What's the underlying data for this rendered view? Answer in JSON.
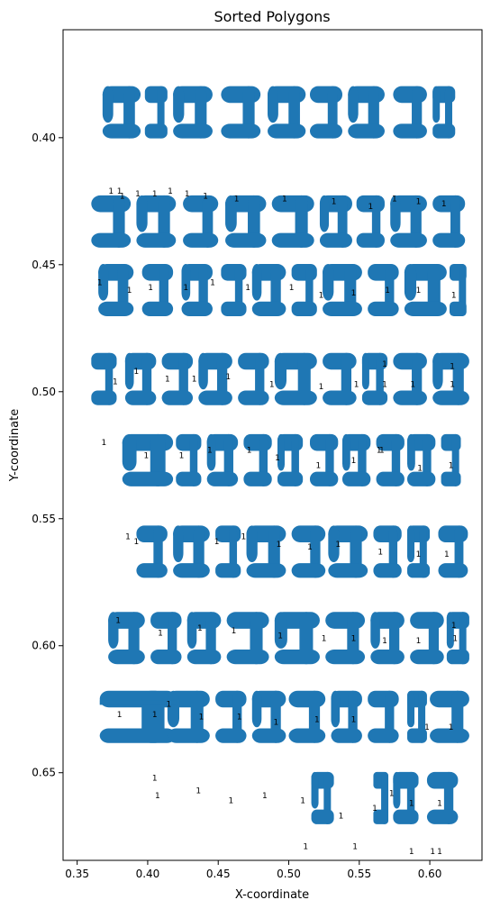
{
  "chart_data": {
    "type": "scatter",
    "title": "Sorted Polygons",
    "xlabel": "X-coordinate",
    "ylabel": "Y-coordinate",
    "xlim": [
      0.34,
      0.637
    ],
    "ylim": [
      0.6845,
      0.3575
    ],
    "y_inverted": true,
    "grid": false,
    "legend": "none",
    "color": "#1f77b4",
    "xticks": [
      0.35,
      0.4,
      0.45,
      0.5,
      0.55,
      0.6
    ],
    "xtick_labels": [
      "0.35",
      "0.40",
      "0.45",
      "0.50",
      "0.55",
      "0.60"
    ],
    "yticks": [
      0.4,
      0.45,
      0.5,
      0.55,
      0.6,
      0.65
    ],
    "ytick_labels": [
      "0.40",
      "0.45",
      "0.50",
      "0.55",
      "0.60",
      "0.65"
    ],
    "point_label_text": "1",
    "polygon_rows": [
      {
        "y": 0.39,
        "x_ranges": [
          [
            0.368,
            0.395
          ],
          [
            0.398,
            0.414
          ],
          [
            0.418,
            0.446
          ],
          [
            0.452,
            0.48
          ],
          [
            0.485,
            0.512
          ],
          [
            0.515,
            0.538
          ],
          [
            0.542,
            0.568
          ],
          [
            0.574,
            0.598
          ],
          [
            0.602,
            0.618
          ]
        ]
      },
      {
        "y": 0.433,
        "x_ranges": [
          [
            0.36,
            0.388
          ],
          [
            0.392,
            0.42
          ],
          [
            0.425,
            0.45
          ],
          [
            0.455,
            0.484
          ],
          [
            0.488,
            0.518
          ],
          [
            0.522,
            0.545
          ],
          [
            0.548,
            0.568
          ],
          [
            0.572,
            0.598
          ],
          [
            0.602,
            0.625
          ]
        ]
      },
      {
        "y": 0.46,
        "x_ranges": [
          [
            0.365,
            0.39
          ],
          [
            0.396,
            0.418
          ],
          [
            0.424,
            0.446
          ],
          [
            0.452,
            0.47
          ],
          [
            0.474,
            0.498
          ],
          [
            0.502,
            0.52
          ],
          [
            0.524,
            0.552
          ],
          [
            0.556,
            0.578
          ],
          [
            0.582,
            0.612
          ],
          [
            0.614,
            0.626
          ]
        ]
      },
      {
        "y": 0.495,
        "x_ranges": [
          [
            0.36,
            0.378
          ],
          [
            0.384,
            0.406
          ],
          [
            0.41,
            0.432
          ],
          [
            0.436,
            0.46
          ],
          [
            0.464,
            0.486
          ],
          [
            0.49,
            0.52
          ],
          [
            0.524,
            0.548
          ],
          [
            0.552,
            0.57
          ],
          [
            0.574,
            0.598
          ],
          [
            0.602,
            0.628
          ]
        ]
      },
      {
        "y": 0.527,
        "x_ranges": [
          [
            0.382,
            0.418
          ],
          [
            0.42,
            0.438
          ],
          [
            0.442,
            0.464
          ],
          [
            0.468,
            0.488
          ],
          [
            0.492,
            0.51
          ],
          [
            0.515,
            0.535
          ],
          [
            0.538,
            0.558
          ],
          [
            0.562,
            0.582
          ],
          [
            0.584,
            0.604
          ],
          [
            0.608,
            0.622
          ]
        ]
      },
      {
        "y": 0.563,
        "x_ranges": [
          [
            0.392,
            0.414
          ],
          [
            0.418,
            0.444
          ],
          [
            0.448,
            0.466
          ],
          [
            0.47,
            0.498
          ],
          [
            0.502,
            0.526
          ],
          [
            0.528,
            0.556
          ],
          [
            0.56,
            0.58
          ],
          [
            0.584,
            0.6
          ],
          [
            0.606,
            0.627
          ]
        ]
      },
      {
        "y": 0.597,
        "x_ranges": [
          [
            0.372,
            0.398
          ],
          [
            0.402,
            0.424
          ],
          [
            0.428,
            0.452
          ],
          [
            0.456,
            0.486
          ],
          [
            0.49,
            0.522
          ],
          [
            0.526,
            0.554
          ],
          [
            0.558,
            0.582
          ],
          [
            0.586,
            0.61
          ],
          [
            0.612,
            0.628
          ]
        ]
      },
      {
        "y": 0.628,
        "x_ranges": [
          [
            0.366,
            0.42
          ],
          [
            0.414,
            0.444
          ],
          [
            0.448,
            0.47
          ],
          [
            0.474,
            0.498
          ],
          [
            0.5,
            0.526
          ],
          [
            0.53,
            0.552
          ],
          [
            0.556,
            0.578
          ],
          [
            0.584,
            0.598
          ],
          [
            0.6,
            0.628
          ]
        ]
      },
      {
        "y": 0.66,
        "x_ranges": [
          [
            0.516,
            0.532
          ],
          [
            0.56,
            0.57
          ],
          [
            0.574,
            0.592
          ],
          [
            0.598,
            0.62
          ]
        ]
      }
    ],
    "point_labels": [
      [
        0.374,
        0.421
      ],
      [
        0.38,
        0.421
      ],
      [
        0.382,
        0.423
      ],
      [
        0.393,
        0.422
      ],
      [
        0.405,
        0.422
      ],
      [
        0.416,
        0.421
      ],
      [
        0.428,
        0.422
      ],
      [
        0.441,
        0.423
      ],
      [
        0.463,
        0.424
      ],
      [
        0.497,
        0.424
      ],
      [
        0.532,
        0.425
      ],
      [
        0.558,
        0.427
      ],
      [
        0.575,
        0.424
      ],
      [
        0.592,
        0.425
      ],
      [
        0.61,
        0.426
      ],
      [
        0.366,
        0.457
      ],
      [
        0.387,
        0.46
      ],
      [
        0.402,
        0.459
      ],
      [
        0.427,
        0.459
      ],
      [
        0.446,
        0.457
      ],
      [
        0.471,
        0.459
      ],
      [
        0.502,
        0.459
      ],
      [
        0.523,
        0.462
      ],
      [
        0.546,
        0.461
      ],
      [
        0.57,
        0.46
      ],
      [
        0.592,
        0.46
      ],
      [
        0.617,
        0.462
      ],
      [
        0.377,
        0.496
      ],
      [
        0.392,
        0.492
      ],
      [
        0.414,
        0.495
      ],
      [
        0.433,
        0.495
      ],
      [
        0.457,
        0.494
      ],
      [
        0.488,
        0.497
      ],
      [
        0.523,
        0.498
      ],
      [
        0.548,
        0.497
      ],
      [
        0.568,
        0.489
      ],
      [
        0.568,
        0.497
      ],
      [
        0.588,
        0.497
      ],
      [
        0.616,
        0.49
      ],
      [
        0.616,
        0.497
      ],
      [
        0.369,
        0.52
      ],
      [
        0.399,
        0.525
      ],
      [
        0.424,
        0.525
      ],
      [
        0.444,
        0.523
      ],
      [
        0.472,
        0.523
      ],
      [
        0.492,
        0.526
      ],
      [
        0.521,
        0.529
      ],
      [
        0.546,
        0.527
      ],
      [
        0.564,
        0.523
      ],
      [
        0.566,
        0.523
      ],
      [
        0.593,
        0.53
      ],
      [
        0.615,
        0.529
      ],
      [
        0.386,
        0.557
      ],
      [
        0.392,
        0.559
      ],
      [
        0.449,
        0.559
      ],
      [
        0.468,
        0.557
      ],
      [
        0.493,
        0.56
      ],
      [
        0.515,
        0.561
      ],
      [
        0.535,
        0.56
      ],
      [
        0.565,
        0.563
      ],
      [
        0.592,
        0.564
      ],
      [
        0.612,
        0.564
      ],
      [
        0.379,
        0.59
      ],
      [
        0.409,
        0.595
      ],
      [
        0.437,
        0.593
      ],
      [
        0.461,
        0.594
      ],
      [
        0.494,
        0.596
      ],
      [
        0.525,
        0.597
      ],
      [
        0.546,
        0.597
      ],
      [
        0.568,
        0.598
      ],
      [
        0.592,
        0.598
      ],
      [
        0.617,
        0.592
      ],
      [
        0.618,
        0.597
      ],
      [
        0.38,
        0.627
      ],
      [
        0.405,
        0.627
      ],
      [
        0.415,
        0.623
      ],
      [
        0.438,
        0.628
      ],
      [
        0.465,
        0.628
      ],
      [
        0.491,
        0.63
      ],
      [
        0.52,
        0.629
      ],
      [
        0.546,
        0.629
      ],
      [
        0.598,
        0.632
      ],
      [
        0.615,
        0.632
      ],
      [
        0.405,
        0.652
      ],
      [
        0.407,
        0.659
      ],
      [
        0.436,
        0.657
      ],
      [
        0.459,
        0.661
      ],
      [
        0.483,
        0.659
      ],
      [
        0.51,
        0.661
      ],
      [
        0.537,
        0.667
      ],
      [
        0.561,
        0.664
      ],
      [
        0.573,
        0.658
      ],
      [
        0.587,
        0.662
      ],
      [
        0.607,
        0.662
      ],
      [
        0.512,
        0.679
      ],
      [
        0.547,
        0.679
      ],
      [
        0.587,
        0.681
      ],
      [
        0.602,
        0.681
      ],
      [
        0.607,
        0.681
      ]
    ]
  }
}
